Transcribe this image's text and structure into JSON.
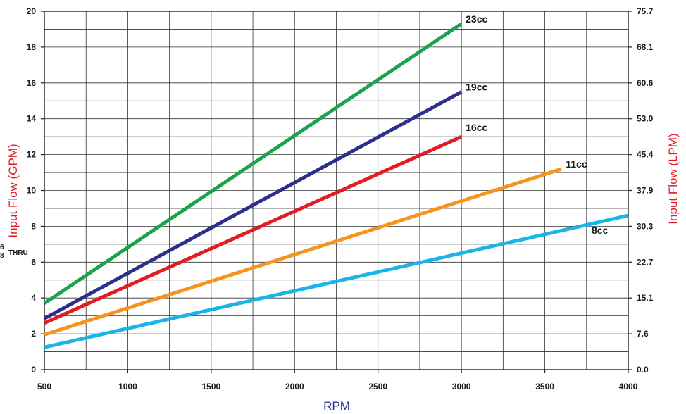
{
  "chart_data": {
    "type": "line",
    "xlabel": "RPM",
    "ylabel": "Input Flow (GPM)",
    "ylabel_right": "Input Flow (LPM)",
    "xlim": [
      500,
      4000
    ],
    "ylim": [
      0,
      20
    ],
    "grid": true,
    "x_ticks": [
      500,
      1000,
      1500,
      2000,
      2500,
      3000,
      3500,
      4000
    ],
    "x_tick_labels": [
      "500",
      "1000",
      "1500",
      "2000",
      "2500",
      "3000",
      "3500",
      "4000"
    ],
    "y_ticks": [
      0,
      2,
      4,
      6,
      8,
      10,
      12,
      14,
      16,
      18,
      20
    ],
    "y_tick_labels": [
      "0",
      "2",
      "4",
      "6",
      "8",
      "10",
      "12",
      "14",
      "16",
      "18",
      "20"
    ],
    "y_right_tick_labels": [
      "0.0",
      "7.6",
      "15.1",
      "22.7",
      "30.3",
      "37.9",
      "45.4",
      "53.0",
      "60.6",
      "68.1",
      "75.7"
    ],
    "side_note": {
      "num": "6",
      "den": "8",
      "text": "THRU"
    },
    "series": [
      {
        "name": "23cc",
        "color": "#1aa34a",
        "x": [
          500,
          3000
        ],
        "y": [
          3.7,
          19.3
        ]
      },
      {
        "name": "19cc",
        "color": "#2d2f8f",
        "x": [
          500,
          3000
        ],
        "y": [
          2.85,
          15.5
        ]
      },
      {
        "name": "16cc",
        "color": "#e31b23",
        "x": [
          500,
          3000
        ],
        "y": [
          2.6,
          13.0
        ]
      },
      {
        "name": "11cc",
        "color": "#f7941d",
        "x": [
          500,
          3600
        ],
        "y": [
          1.95,
          11.2
        ]
      },
      {
        "name": "8cc",
        "color": "#1bb4e8",
        "x": [
          500,
          4000
        ],
        "y": [
          1.25,
          8.6
        ]
      }
    ]
  }
}
